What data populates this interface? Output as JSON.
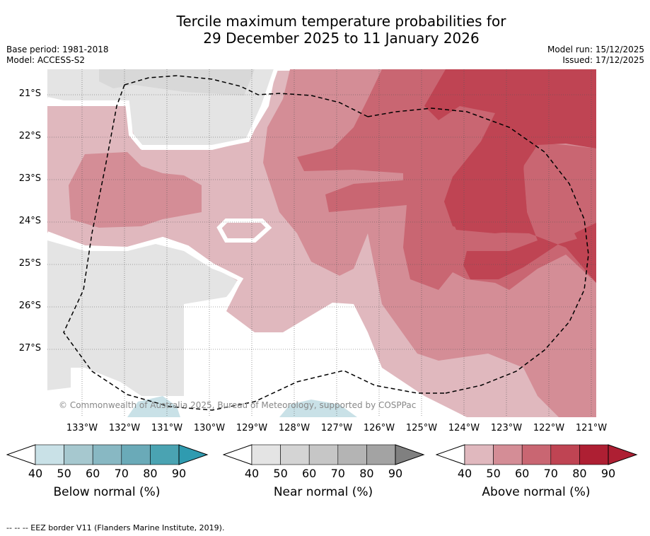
{
  "title": {
    "line1": "Tercile maximum temperature probabilities for",
    "line2": "29 December 2025 to 11 January 2026"
  },
  "meta_left": {
    "base_period": "Base period: 1981-2018",
    "model": "Model: ACCESS-S2"
  },
  "meta_right": {
    "model_run": "Model run: 15/12/2025",
    "issued": "Issued: 17/12/2025"
  },
  "map": {
    "latitude_labels": [
      "21°S",
      "22°S",
      "23°S",
      "24°S",
      "25°S",
      "26°S",
      "27°S"
    ],
    "longitude_labels": [
      "133°W",
      "132°W",
      "131°W",
      "130°W",
      "129°W",
      "128°W",
      "127°W",
      "126°W",
      "125°W",
      "124°W",
      "123°W",
      "122°W",
      "121°W"
    ],
    "copyright": "© Commonwealth of Australia 2025, Bureau of Meteorology, supported by COSPPac",
    "colors": {
      "above": [
        "#e0b8be",
        "#d48d96",
        "#c96672",
        "#bf4453",
        "#ae1f33"
      ],
      "near": [
        "#e4e4e4",
        "#d4d4d4",
        "#c6c6c6",
        "#b4b4b4",
        "#a3a3a3",
        "#808080"
      ],
      "below": [
        "#c9e1e7",
        "#a6c8cf",
        "#88b8c3",
        "#6aaab8",
        "#4aa3b2",
        "#2f9bb0"
      ]
    }
  },
  "colorbars": [
    {
      "label": "Below normal (%)",
      "ticks": [
        "40",
        "50",
        "60",
        "70",
        "80",
        "90"
      ]
    },
    {
      "label": "Near normal (%)",
      "ticks": [
        "40",
        "50",
        "60",
        "70",
        "80",
        "90"
      ]
    },
    {
      "label": "Above normal (%)",
      "ticks": [
        "40",
        "50",
        "60",
        "70",
        "80",
        "90"
      ]
    }
  ],
  "footer": "--  --  -- EEZ border V11 (Flanders Marine Institute, 2019)."
}
